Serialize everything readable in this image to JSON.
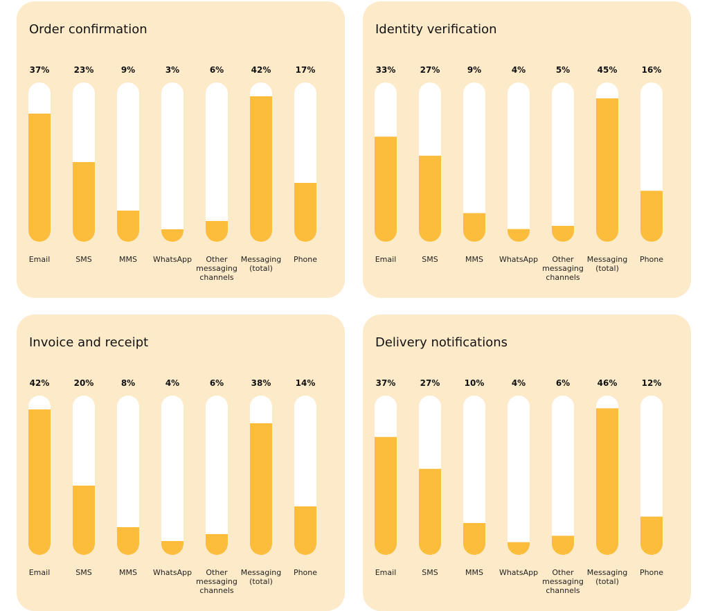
{
  "colors": {
    "panel_bg": "#fdeac9",
    "track": "#ffffff",
    "fill": "#fdbd3c",
    "text": "#111111"
  },
  "chart_data": [
    {
      "type": "bar",
      "title": "Order confirmation",
      "categories": [
        "Email",
        "SMS",
        "MMS",
        "WhatsApp",
        "Other messaging channels",
        "Messaging (total)",
        "Phone"
      ],
      "values": [
        37,
        23,
        9,
        3,
        6,
        42,
        17
      ],
      "value_labels": [
        "37%",
        "23%",
        "9%",
        "3%",
        "6%",
        "42%",
        "17%"
      ],
      "ylim": [
        0,
        46
      ],
      "grid": false,
      "legend": "none"
    },
    {
      "type": "bar",
      "title": "Identity verification",
      "categories": [
        "Email",
        "SMS",
        "MMS",
        "WhatsApp",
        "Other messaging channels",
        "Messaging (total)",
        "Phone"
      ],
      "values": [
        33,
        27,
        9,
        4,
        5,
        45,
        16
      ],
      "value_labels": [
        "33%",
        "27%",
        "9%",
        "4%",
        "5%",
        "45%",
        "16%"
      ],
      "ylim": [
        0,
        50
      ],
      "grid": false,
      "legend": "none"
    },
    {
      "type": "bar",
      "title": "Invoice and receipt",
      "categories": [
        "Email",
        "SMS",
        "MMS",
        "WhatsApp",
        "Other messaging channels",
        "Messaging (total)",
        "Phone"
      ],
      "values": [
        42,
        20,
        8,
        4,
        6,
        38,
        14
      ],
      "value_labels": [
        "42%",
        "20%",
        "8%",
        "4%",
        "6%",
        "38%",
        "14%"
      ],
      "ylim": [
        0,
        46
      ],
      "grid": false,
      "legend": "none"
    },
    {
      "type": "bar",
      "title": "Delivery notifications",
      "categories": [
        "Email",
        "SMS",
        "MMS",
        "WhatsApp",
        "Other messaging channels",
        "Messaging (total)",
        "Phone"
      ],
      "values": [
        37,
        27,
        10,
        4,
        6,
        46,
        12
      ],
      "value_labels": [
        "37%",
        "27%",
        "10%",
        "4%",
        "6%",
        "46%",
        "12%"
      ],
      "ylim": [
        0,
        50
      ],
      "grid": false,
      "legend": "none"
    }
  ]
}
